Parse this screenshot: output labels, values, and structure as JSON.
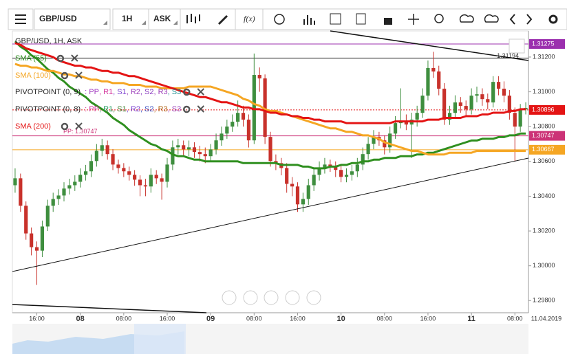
{
  "toolbar": {
    "symbol": "GBP/USD",
    "timeframe": "1H",
    "price_type": "ASK",
    "fx": "f(x)"
  },
  "chart_data": {
    "type": "candlestick",
    "title": "GBP/USD, 1H, ASK",
    "categories": [
      null,
      null,
      null,
      null,
      "16:00",
      null,
      null,
      null,
      null,
      null,
      null,
      null,
      "08",
      null,
      null,
      null,
      null,
      null,
      null,
      null,
      "08:00",
      null,
      null,
      null,
      null,
      null,
      null,
      null,
      "16:00",
      null,
      null,
      null,
      null,
      null,
      null,
      null,
      "09",
      null,
      null,
      null,
      null,
      null,
      null,
      null,
      "08:00",
      null,
      null,
      null,
      null,
      null,
      null,
      null,
      "16:00",
      null,
      null,
      null,
      null,
      null,
      null,
      null,
      "10",
      null,
      null,
      null,
      null,
      null,
      null,
      null,
      "08:00",
      null,
      null,
      null,
      null,
      null,
      null,
      null,
      "16:00",
      null,
      null,
      null,
      null,
      null,
      null,
      null,
      "11",
      null,
      null,
      null,
      null,
      null,
      null,
      null,
      "08:00",
      null,
      null
    ],
    "date_label": "11.04.2019",
    "open": [
      1.30463,
      1.30503,
      1.30345,
      1.30186,
      1.30107,
      1.30087,
      1.30226,
      1.30345,
      1.30384,
      1.30404,
      1.30444,
      1.30463,
      1.30483,
      1.30523,
      1.30543,
      1.30602,
      1.30661,
      1.30693,
      1.30642,
      1.30582,
      1.30562,
      1.30543,
      1.30523,
      1.30495,
      1.30463,
      1.30456,
      1.30523,
      1.30503,
      1.30483,
      1.30582,
      1.30681,
      1.30693,
      1.30669,
      1.30681,
      1.30654,
      1.30642,
      1.3063,
      1.30669,
      1.30721,
      1.3076,
      1.308,
      1.30828,
      1.30879,
      1.3084,
      1.30721,
      1.31097,
      1.31077,
      1.30741,
      1.30602,
      1.3059,
      1.30562,
      1.30471,
      1.30456,
      1.30353,
      1.30384,
      1.30463,
      1.30523,
      1.30562,
      1.30582,
      1.30574,
      1.30551,
      1.30511,
      1.30523,
      1.30543,
      1.30582,
      1.30642,
      1.30701,
      1.30741,
      1.30721,
      1.30681,
      1.3076,
      1.3082,
      1.30828,
      1.30812,
      1.3084,
      1.30879,
      1.30978,
      1.31137,
      1.31117,
      1.31018,
      1.3084,
      1.30879,
      1.30939,
      1.30919,
      1.30899,
      1.30978,
      1.30986,
      1.30958,
      1.30939,
      1.31057,
      1.31018,
      1.30978,
      1.30879,
      1.308,
      1.30899
    ],
    "high": [
      1.3056,
      1.3053,
      1.3037,
      1.3022,
      1.3014,
      1.3026,
      1.3038,
      1.3042,
      1.3044,
      1.3048,
      1.305,
      1.3052,
      1.3056,
      1.3058,
      1.3064,
      1.307,
      1.3073,
      1.3072,
      1.3067,
      1.3061,
      1.3059,
      1.3057,
      1.3055,
      1.3052,
      1.305,
      1.3056,
      1.3055,
      1.3053,
      1.3062,
      1.3072,
      1.3073,
      1.3072,
      1.3072,
      1.3071,
      1.3069,
      1.3068,
      1.307,
      1.3076,
      1.308,
      1.3084,
      1.3087,
      1.3095,
      1.3092,
      1.3087,
      1.3122,
      1.3114,
      1.311,
      1.3077,
      1.3064,
      1.3062,
      1.3059,
      1.3051,
      1.3048,
      1.3042,
      1.305,
      1.3056,
      1.306,
      1.3062,
      1.3061,
      1.306,
      1.3058,
      1.3056,
      1.3058,
      1.3062,
      1.3068,
      1.3074,
      1.3078,
      1.3077,
      1.3075,
      1.308,
      1.3086,
      1.3102,
      1.3087,
      1.3088,
      1.3092,
      1.3102,
      1.3118,
      1.3123,
      1.3115,
      1.3105,
      1.3092,
      1.3098,
      1.3097,
      1.3095,
      1.3102,
      1.3103,
      1.3102,
      1.3099,
      1.3109,
      1.3109,
      1.3106,
      1.3101,
      1.3091,
      1.3093,
      1.3094
    ],
    "low": [
      1.3042,
      1.3031,
      1.3015,
      1.3006,
      1.2989,
      1.3005,
      1.302,
      1.3031,
      1.3035,
      1.3037,
      1.3041,
      1.3043,
      1.3045,
      1.3049,
      1.3051,
      1.3057,
      1.3063,
      1.3061,
      1.3055,
      1.3053,
      1.3051,
      1.3049,
      1.3046,
      1.304,
      1.304,
      1.3042,
      1.3047,
      1.3038,
      1.3045,
      1.3055,
      1.3064,
      1.3063,
      1.3063,
      1.3062,
      1.306,
      1.3059,
      1.306,
      1.3064,
      1.3069,
      1.3073,
      1.3077,
      1.308,
      1.308,
      1.3068,
      1.307,
      1.31,
      1.307,
      1.3057,
      1.3055,
      1.3052,
      1.3042,
      1.304,
      1.3031,
      1.3031,
      1.3035,
      1.3043,
      1.3049,
      1.3053,
      1.3054,
      1.3051,
      1.3048,
      1.3048,
      1.3049,
      1.3051,
      1.3055,
      1.3061,
      1.3067,
      1.3069,
      1.3064,
      1.3065,
      1.3073,
      1.3079,
      1.3078,
      1.3062,
      1.308,
      1.3085,
      1.3095,
      1.3108,
      1.3098,
      1.3081,
      1.3081,
      1.3085,
      1.3088,
      1.3086,
      1.3087,
      1.3094,
      1.3092,
      1.309,
      1.3091,
      1.3098,
      1.3094,
      1.3084,
      1.306,
      1.3077,
      1.3087
    ],
    "close": [
      1.30503,
      1.30345,
      1.30186,
      1.30107,
      1.30087,
      1.30226,
      1.30345,
      1.30384,
      1.30404,
      1.30444,
      1.30463,
      1.30483,
      1.30523,
      1.30543,
      1.30602,
      1.30661,
      1.30693,
      1.30642,
      1.30582,
      1.30562,
      1.30543,
      1.30523,
      1.30495,
      1.30463,
      1.30456,
      1.30523,
      1.30503,
      1.30483,
      1.30582,
      1.30681,
      1.30693,
      1.30669,
      1.30681,
      1.30654,
      1.30642,
      1.3063,
      1.30669,
      1.30721,
      1.3076,
      1.308,
      1.30828,
      1.30879,
      1.3084,
      1.30721,
      1.31097,
      1.31077,
      1.30741,
      1.30602,
      1.3059,
      1.30562,
      1.30471,
      1.30456,
      1.30353,
      1.30384,
      1.30463,
      1.30523,
      1.30562,
      1.30582,
      1.30574,
      1.30551,
      1.30511,
      1.30523,
      1.30543,
      1.30582,
      1.30642,
      1.30701,
      1.30741,
      1.30721,
      1.30681,
      1.3076,
      1.3082,
      1.30828,
      1.30812,
      1.3084,
      1.30879,
      1.30978,
      1.31137,
      1.31117,
      1.31018,
      1.3084,
      1.30879,
      1.30939,
      1.30919,
      1.30899,
      1.30978,
      1.30986,
      1.30958,
      1.30939,
      1.31057,
      1.31018,
      1.30978,
      1.30879,
      1.308,
      1.30899,
      1.30907
    ],
    "up_color": "#3e8e3e",
    "down_color": "#c8312b",
    "series": [
      {
        "name": "SMA (55)",
        "color": "#2f8f1f",
        "values": [
          1.3129,
          1.3126,
          1.3124,
          1.3121,
          1.3119,
          1.3116,
          1.3113,
          1.3111,
          1.3108,
          1.3106,
          1.3103,
          1.3101,
          1.3099,
          1.3097,
          1.3094,
          1.3092,
          1.309,
          1.3088,
          1.3085,
          1.3083,
          1.3081,
          1.3078,
          1.3076,
          1.3074,
          1.3072,
          1.307,
          1.3069,
          1.3067,
          1.3066,
          1.3064,
          1.3063,
          1.3063,
          1.3062,
          1.3061,
          1.3061,
          1.306,
          1.306,
          1.306,
          1.306,
          1.306,
          1.306,
          1.306,
          1.3059,
          1.3059,
          1.3059,
          1.3059,
          1.3059,
          1.3059,
          1.3059,
          1.3058,
          1.3058,
          1.3058,
          1.3058,
          1.3057,
          1.3057,
          1.3056,
          1.3056,
          1.3056,
          1.3057,
          1.3057,
          1.3058,
          1.3058,
          1.3059,
          1.3059,
          1.306,
          1.306,
          1.3061,
          1.3061,
          1.3062,
          1.3062,
          1.3062,
          1.3063,
          1.3063,
          1.3063,
          1.3064,
          1.3064,
          1.3065,
          1.3065,
          1.3066,
          1.3067,
          1.3068,
          1.3069,
          1.307,
          1.3071,
          1.3072,
          1.3072,
          1.3073,
          1.3073,
          1.3073,
          1.3074,
          1.3074,
          1.3075,
          1.3075,
          1.3076,
          1.3076
        ]
      },
      {
        "name": "SMA (100)",
        "color": "#f5a623",
        "values": [
          1.3116,
          1.3115,
          1.3115,
          1.3114,
          1.3114,
          1.3113,
          1.3112,
          1.3112,
          1.3111,
          1.311,
          1.311,
          1.3109,
          1.3109,
          1.3108,
          1.3107,
          1.3107,
          1.3106,
          1.3106,
          1.3105,
          1.3105,
          1.3105,
          1.3104,
          1.3104,
          1.3104,
          1.3103,
          1.3103,
          1.3103,
          1.3102,
          1.3102,
          1.3102,
          1.3102,
          1.3102,
          1.3103,
          1.3103,
          1.3103,
          1.3103,
          1.3103,
          1.3102,
          1.3101,
          1.31,
          1.3099,
          1.3098,
          1.3096,
          1.3095,
          1.3093,
          1.3092,
          1.309,
          1.3089,
          1.3089,
          1.3088,
          1.3087,
          1.3086,
          1.3085,
          1.3084,
          1.3083,
          1.3082,
          1.3081,
          1.308,
          1.3079,
          1.3079,
          1.3078,
          1.3077,
          1.3077,
          1.3076,
          1.3075,
          1.3075,
          1.3074,
          1.3073,
          1.3071,
          1.307,
          1.3069,
          1.3068,
          1.3067,
          1.3066,
          1.3066,
          1.3065,
          1.3064,
          1.3064,
          1.3064,
          1.3064,
          1.3065,
          1.3065,
          1.3065,
          1.3065,
          1.3065,
          1.3066,
          1.3066,
          1.3066,
          1.3066,
          1.3066,
          1.3066,
          1.3066,
          1.3066,
          1.3066,
          1.3066
        ]
      },
      {
        "name": "SMA (200)",
        "color": "#e41414",
        "values": [
          1.3128,
          1.3127,
          1.3125,
          1.3124,
          1.3123,
          1.3122,
          1.3121,
          1.312,
          1.3118,
          1.3117,
          1.3116,
          1.3115,
          1.3115,
          1.3114,
          1.3114,
          1.3113,
          1.3112,
          1.3112,
          1.3111,
          1.3111,
          1.311,
          1.3109,
          1.3109,
          1.3108,
          1.3107,
          1.3106,
          1.3105,
          1.3104,
          1.3103,
          1.3102,
          1.3101,
          1.31,
          1.3099,
          1.3098,
          1.3097,
          1.3097,
          1.3096,
          1.3095,
          1.3094,
          1.3094,
          1.3093,
          1.3092,
          1.3091,
          1.3091,
          1.309,
          1.309,
          1.3089,
          1.3088,
          1.3088,
          1.3087,
          1.3087,
          1.3086,
          1.3086,
          1.3085,
          1.3085,
          1.3084,
          1.3084,
          1.3083,
          1.3083,
          1.3083,
          1.3083,
          1.3082,
          1.3082,
          1.3082,
          1.3082,
          1.3082,
          1.3082,
          1.3082,
          1.3082,
          1.3082,
          1.3083,
          1.3083,
          1.3083,
          1.3083,
          1.3083,
          1.3083,
          1.3084,
          1.3084,
          1.3084,
          1.3085,
          1.3085,
          1.3085,
          1.3085,
          1.3086,
          1.3086,
          1.3086,
          1.3087,
          1.3087,
          1.3088,
          1.3088,
          1.3088,
          1.3089,
          1.3089,
          1.309,
          1.309
        ]
      }
    ],
    "pivots": [
      {
        "name": "PIVOTPOINT (0, 9)",
        "items": [
          {
            "text": ": PP",
            "color": "#a23bc0"
          },
          {
            "text": ", R1",
            "color": "#d2309a"
          },
          {
            "text": ", S1",
            "color": "#7a3fd0"
          },
          {
            "text": ", R2",
            "color": "#9a3ab8"
          },
          {
            "text": ", S2",
            "color": "#8a3ac0"
          },
          {
            "text": ", R3",
            "color": "#9a3ab8"
          },
          {
            "text": ", S3",
            "color": "#1f8f8f"
          }
        ]
      },
      {
        "name": "PIVOTPOINT (0, 8)",
        "items": [
          {
            "text": ": PP",
            "color": "#d2309a"
          },
          {
            "text": ", R1",
            "color": "#1f9a5a"
          },
          {
            "text": ", S1",
            "color": "#3a7a2a"
          },
          {
            "text": ", R2",
            "color": "#7a3fd0"
          },
          {
            "text": ", S2",
            "color": "#3a50c0"
          },
          {
            "text": ", R3",
            "color": "#b06010"
          },
          {
            "text": ", S3",
            "color": "#9a3ab8"
          }
        ]
      }
    ],
    "pp_label": "PP: 1.30747",
    "price_lines": [
      {
        "value": 1.31275,
        "color": "#9b2fae",
        "badge": true
      },
      {
        "value": 1.31194,
        "color": "#111111",
        "badge": false
      },
      {
        "value": 1.30896,
        "color": "#e41414",
        "badge": true,
        "dashed": true
      },
      {
        "value": 1.30747,
        "color": "#cc3377",
        "badge": true
      },
      {
        "value": 1.30667,
        "color": "#f5a623",
        "badge": true
      }
    ],
    "ylim": [
      1.2973,
      1.3135
    ],
    "yticks": [
      {
        "value": 1.298,
        "label": "1.29800"
      },
      {
        "value": 1.3,
        "label": "1.30000"
      },
      {
        "value": 1.302,
        "label": "1.30200"
      },
      {
        "value": 1.304,
        "label": "1.30400"
      },
      {
        "value": 1.306,
        "label": "1.30600"
      },
      {
        "value": 1.308,
        "label": "1.30800"
      },
      {
        "value": 1.31,
        "label": "1.31000"
      },
      {
        "value": 1.312,
        "label": "1.31200"
      }
    ],
    "grid": false
  }
}
